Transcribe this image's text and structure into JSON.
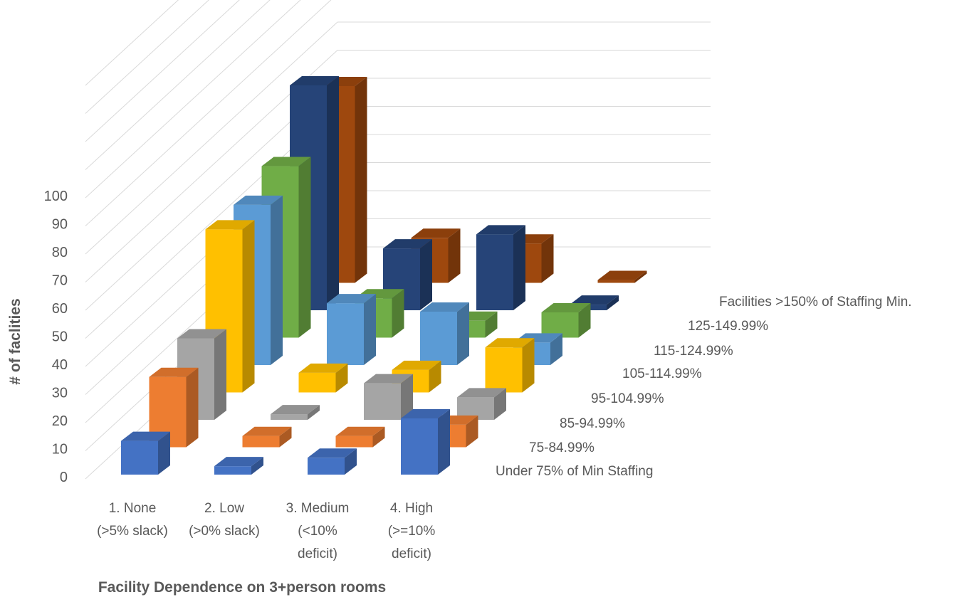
{
  "chart_data": {
    "type": "bar",
    "subtype": "3d-column",
    "ylabel": "# of faclities",
    "xlabel": "Facility Dependence on 3+person rooms",
    "ylim": [
      0,
      100
    ],
    "yticks": [
      "0",
      "10",
      "20",
      "30",
      "40",
      "50",
      "60",
      "70",
      "80",
      "90",
      "100"
    ],
    "categories": [
      [
        "1. None",
        "(>5% slack)"
      ],
      [
        "2. Low",
        "(>0% slack)"
      ],
      [
        "3. Medium",
        "(<10%",
        "deficit)"
      ],
      [
        "4. High",
        "(>=10%",
        "deficit)"
      ]
    ],
    "series": [
      {
        "name": "Under 75% of Min Staffing",
        "color": "#4472c4",
        "values": [
          12,
          3,
          6,
          20
        ]
      },
      {
        "name": "75-84.99%",
        "color": "#ed7d31",
        "values": [
          25,
          4,
          4,
          8
        ]
      },
      {
        "name": "85-94.99%",
        "color": "#a5a5a5",
        "values": [
          29,
          2,
          13,
          8
        ]
      },
      {
        "name": "95-104.99%",
        "color": "#ffc000",
        "values": [
          58,
          7,
          8,
          16
        ]
      },
      {
        "name": "105-114.99%",
        "color": "#5b9bd5",
        "values": [
          57,
          22,
          19,
          8
        ]
      },
      {
        "name": "115-124.99%",
        "color": "#70ad47",
        "values": [
          61,
          14,
          6,
          9
        ]
      },
      {
        "name": "125-149.99%",
        "color": "#264478",
        "values": [
          80,
          22,
          27,
          2
        ]
      },
      {
        "name": "Facilities >150% of Staffing Min.",
        "color": "#9e480e",
        "values": [
          70,
          16,
          14,
          1
        ]
      }
    ]
  }
}
